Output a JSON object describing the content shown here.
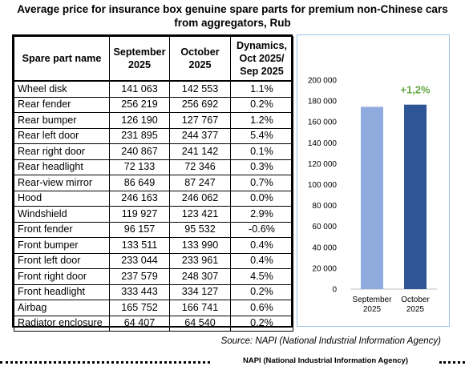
{
  "title": {
    "line1": "Average price for insurance box genuine spare parts for premium non-Chinese cars",
    "line2": "from aggregators, Rub"
  },
  "table": {
    "headers": {
      "name": "Spare part name",
      "sep": "September 2025",
      "oct": "October 2025",
      "dyn": "Dynamics, Oct 2025/ Sep 2025"
    },
    "rows": [
      {
        "name": "Wheel disk",
        "sep": "141 063",
        "oct": "142 553",
        "dyn": "1.1%"
      },
      {
        "name": "Rear fender",
        "sep": "256 219",
        "oct": "256 692",
        "dyn": "0.2%"
      },
      {
        "name": "Rear bumper",
        "sep": "126 190",
        "oct": "127 767",
        "dyn": "1.2%"
      },
      {
        "name": "Rear left door",
        "sep": "231 895",
        "oct": "244 377",
        "dyn": "5.4%"
      },
      {
        "name": "Rear right door",
        "sep": "240 867",
        "oct": "241 142",
        "dyn": "0.1%"
      },
      {
        "name": "Rear headlight",
        "sep": "72 133",
        "oct": "72 346",
        "dyn": "0.3%"
      },
      {
        "name": "Rear-view mirror",
        "sep": "86 649",
        "oct": "87 247",
        "dyn": "0.7%"
      },
      {
        "name": "Hood",
        "sep": "246 163",
        "oct": "246 062",
        "dyn": "0.0%"
      },
      {
        "name": "Windshield",
        "sep": "119 927",
        "oct": "123 421",
        "dyn": "2.9%"
      },
      {
        "name": "Front fender",
        "sep": "96 157",
        "oct": "95 532",
        "dyn": "-0.6%"
      },
      {
        "name": "Front bumper",
        "sep": "133 511",
        "oct": "133 990",
        "dyn": "0.4%"
      },
      {
        "name": "Front left door",
        "sep": "233 044",
        "oct": "233 961",
        "dyn": "0.4%"
      },
      {
        "name": "Front right door",
        "sep": "237 579",
        "oct": "248 307",
        "dyn": "4.5%"
      },
      {
        "name": "Front headlight",
        "sep": "333 443",
        "oct": "334 127",
        "dyn": "0.2%"
      },
      {
        "name": "Airbag",
        "sep": "165 752",
        "oct": "166 741",
        "dyn": "0.6%"
      },
      {
        "name": "Radiator enclosure",
        "sep": "64 407",
        "oct": "64 540",
        "dyn": "0.2%"
      }
    ]
  },
  "chart_data": {
    "type": "bar",
    "categories": [
      [
        "September",
        "2025"
      ],
      [
        "October",
        "2025"
      ]
    ],
    "values": [
      174400,
      176500
    ],
    "bar_colors": [
      "#8faadc",
      "#2f5597"
    ],
    "ylim": [
      0,
      200000
    ],
    "yticks": [
      "0",
      "20 000",
      "40 000",
      "60 000",
      "80 000",
      "100 000",
      "120 000",
      "140 000",
      "160 000",
      "180 000",
      "200 000"
    ],
    "annotation": "+1,2%",
    "annotation_color": "#62a744",
    "grid": false,
    "legend": "none"
  },
  "source": "Source: NAPI (National Industrial Information Agency)",
  "footer": "NAPI (National Industrial Information Agency)"
}
